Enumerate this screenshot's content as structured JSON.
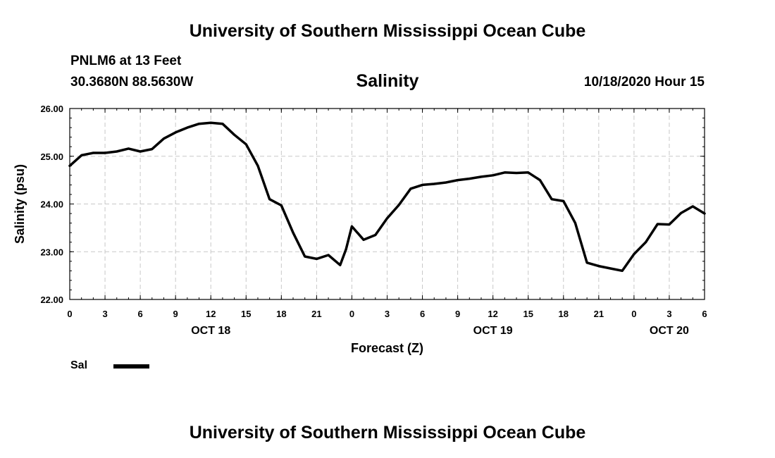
{
  "header": {
    "title": "University of Southern Mississippi Ocean Cube",
    "station": "PNLM6 at 13 Feet",
    "coordinates": "30.3680N 88.5630W",
    "datetime": "10/18/2020 Hour 15"
  },
  "footer": {
    "title": "University of Southern Mississippi Ocean Cube"
  },
  "legend": {
    "label": "Sal"
  },
  "chart_data": {
    "type": "line",
    "title": "Salinity",
    "xlabel": "Forecast (Z)",
    "ylabel": "Salinity (psu)",
    "ylim": [
      22,
      26
    ],
    "xlim": [
      0,
      54
    ],
    "grid": true,
    "y_ticks": [
      "22.00",
      "23.00",
      "24.00",
      "25.00",
      "26.00"
    ],
    "x_ticks": [
      "0",
      "3",
      "6",
      "9",
      "12",
      "15",
      "18",
      "21",
      "0",
      "3",
      "6",
      "9",
      "12",
      "15",
      "18",
      "21",
      "0",
      "3",
      "6"
    ],
    "day_labels": [
      {
        "label": "OCT 18",
        "hour": 12
      },
      {
        "label": "OCT 19",
        "hour": 36
      },
      {
        "label": "OCT 20",
        "hour": 51
      }
    ],
    "series": [
      {
        "name": "Sal",
        "x": [
          0,
          1,
          2,
          3,
          4,
          5,
          6,
          7,
          8,
          9,
          10,
          11,
          12,
          13,
          14,
          15,
          16,
          17,
          18,
          19,
          20,
          21,
          22,
          23,
          23.5,
          24,
          25,
          26,
          27,
          28,
          29,
          30,
          31,
          32,
          33,
          34,
          35,
          36,
          37,
          38,
          39,
          40,
          41,
          42,
          43,
          44,
          45,
          46,
          47,
          48,
          49,
          50,
          51,
          52,
          53,
          54
        ],
        "values": [
          24.8,
          25.02,
          25.07,
          25.07,
          25.1,
          25.16,
          25.1,
          25.15,
          25.37,
          25.5,
          25.6,
          25.68,
          25.7,
          25.68,
          25.45,
          25.25,
          24.8,
          24.1,
          23.97,
          23.4,
          22.9,
          22.85,
          22.93,
          22.72,
          23.05,
          23.53,
          23.25,
          23.35,
          23.7,
          23.98,
          24.32,
          24.4,
          24.42,
          24.45,
          24.5,
          24.53,
          24.57,
          24.6,
          24.66,
          24.65,
          24.66,
          24.5,
          24.1,
          24.06,
          23.6,
          22.77,
          22.7,
          22.65,
          22.6,
          22.95,
          23.2,
          23.58,
          23.57,
          23.81,
          23.95,
          23.8
        ]
      }
    ]
  }
}
